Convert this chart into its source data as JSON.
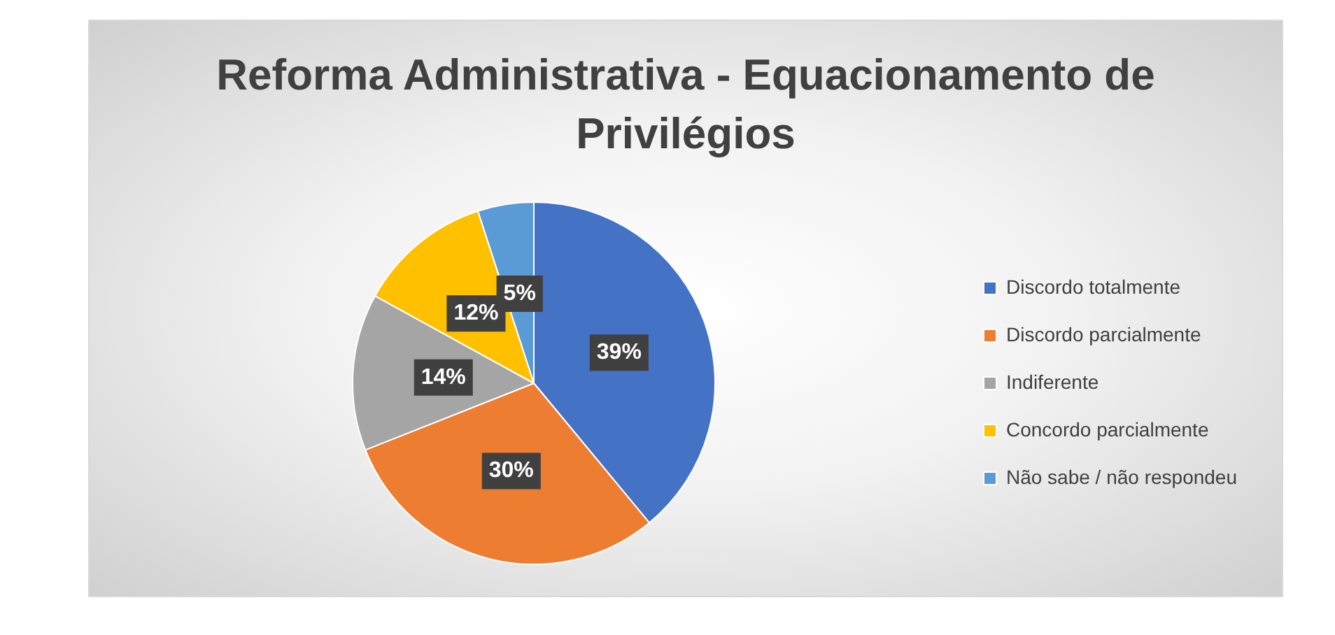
{
  "chart_data": {
    "type": "pie",
    "title": "Reforma Administrativa - Equacionamento de Privilégios",
    "categories": [
      "Discordo totalmente",
      "Discordo parcialmente",
      "Indiferente",
      "Concordo parcialmente",
      "Não sabe / não respondeu"
    ],
    "values": [
      39,
      30,
      14,
      12,
      5
    ],
    "value_labels": [
      "39%",
      "30%",
      "14%",
      "12%",
      "5%"
    ],
    "colors": [
      "#4472c4",
      "#ed7d31",
      "#a5a5a5",
      "#ffc000",
      "#5b9bd5"
    ],
    "legend": "right"
  }
}
